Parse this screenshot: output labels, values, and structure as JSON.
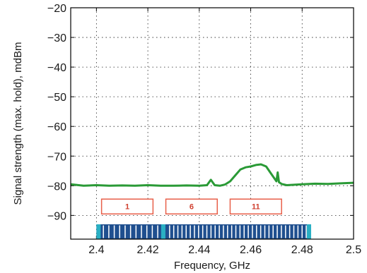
{
  "chart_data": {
    "type": "line",
    "xlabel": "Frequency, GHz",
    "ylabel": "Signal strength (max. hold), mdBm",
    "xlim": [
      2.39,
      2.5
    ],
    "ylim": [
      -98,
      -20
    ],
    "xticks": [
      2.4,
      2.42,
      2.44,
      2.46,
      2.48,
      2.5
    ],
    "xtick_labels": [
      "2.4",
      "2.42",
      "2.44",
      "2.46",
      "2.48",
      "2.5"
    ],
    "yticks": [
      -20,
      -30,
      -40,
      -50,
      -60,
      -70,
      -80,
      -90
    ],
    "ytick_labels": [
      "−20",
      "−30",
      "−40",
      "−50",
      "−60",
      "−70",
      "−80",
      "−90"
    ],
    "grid": true,
    "series": [
      {
        "color": "#2a9a36",
        "x": [
          2.39,
          2.395,
          2.4,
          2.405,
          2.41,
          2.415,
          2.42,
          2.425,
          2.43,
          2.435,
          2.44,
          2.443,
          2.4445,
          2.446,
          2.448,
          2.45,
          2.452,
          2.454,
          2.456,
          2.458,
          2.46,
          2.462,
          2.464,
          2.466,
          2.468,
          2.47,
          2.4705,
          2.471,
          2.472,
          2.474,
          2.48,
          2.485,
          2.49,
          2.495,
          2.5
        ],
        "y": [
          -79.5,
          -80.0,
          -79.8,
          -80.0,
          -79.9,
          -80.0,
          -79.8,
          -80.0,
          -80.0,
          -79.9,
          -80.0,
          -79.8,
          -78.0,
          -79.8,
          -80.0,
          -79.6,
          -78.5,
          -76.5,
          -74.5,
          -73.8,
          -73.5,
          -73.0,
          -72.8,
          -73.5,
          -76.0,
          -78.5,
          -75.5,
          -78.8,
          -79.4,
          -79.8,
          -79.5,
          -79.3,
          -79.4,
          -79.2,
          -79.0
        ]
      }
    ],
    "channels": {
      "border_color": "#e8604a",
      "text_color": "#d04030",
      "items": [
        {
          "label": "1",
          "center": 2.412,
          "width": 0.02,
          "y_top": -84.5,
          "y_bottom": -89.5
        },
        {
          "label": "6",
          "center": 2.437,
          "width": 0.02,
          "y_top": -84.5,
          "y_bottom": -89.5
        },
        {
          "label": "11",
          "center": 2.462,
          "width": 0.02,
          "y_top": -84.5,
          "y_bottom": -89.5
        }
      ]
    },
    "band_bar": {
      "x_start": 2.4,
      "x_end": 2.4835,
      "y_top": -93,
      "y_bottom": -98,
      "fill_color": "#1f4f8f",
      "edge_color": "#2ab0c4",
      "stripe_color": "#ffffff",
      "divider": 2.426,
      "segments": [
        {
          "x_start": 2.4,
          "x_end": 2.426,
          "stripes": 11
        },
        {
          "x_start": 2.426,
          "x_end": 2.4835,
          "stripes": 34
        }
      ]
    }
  }
}
